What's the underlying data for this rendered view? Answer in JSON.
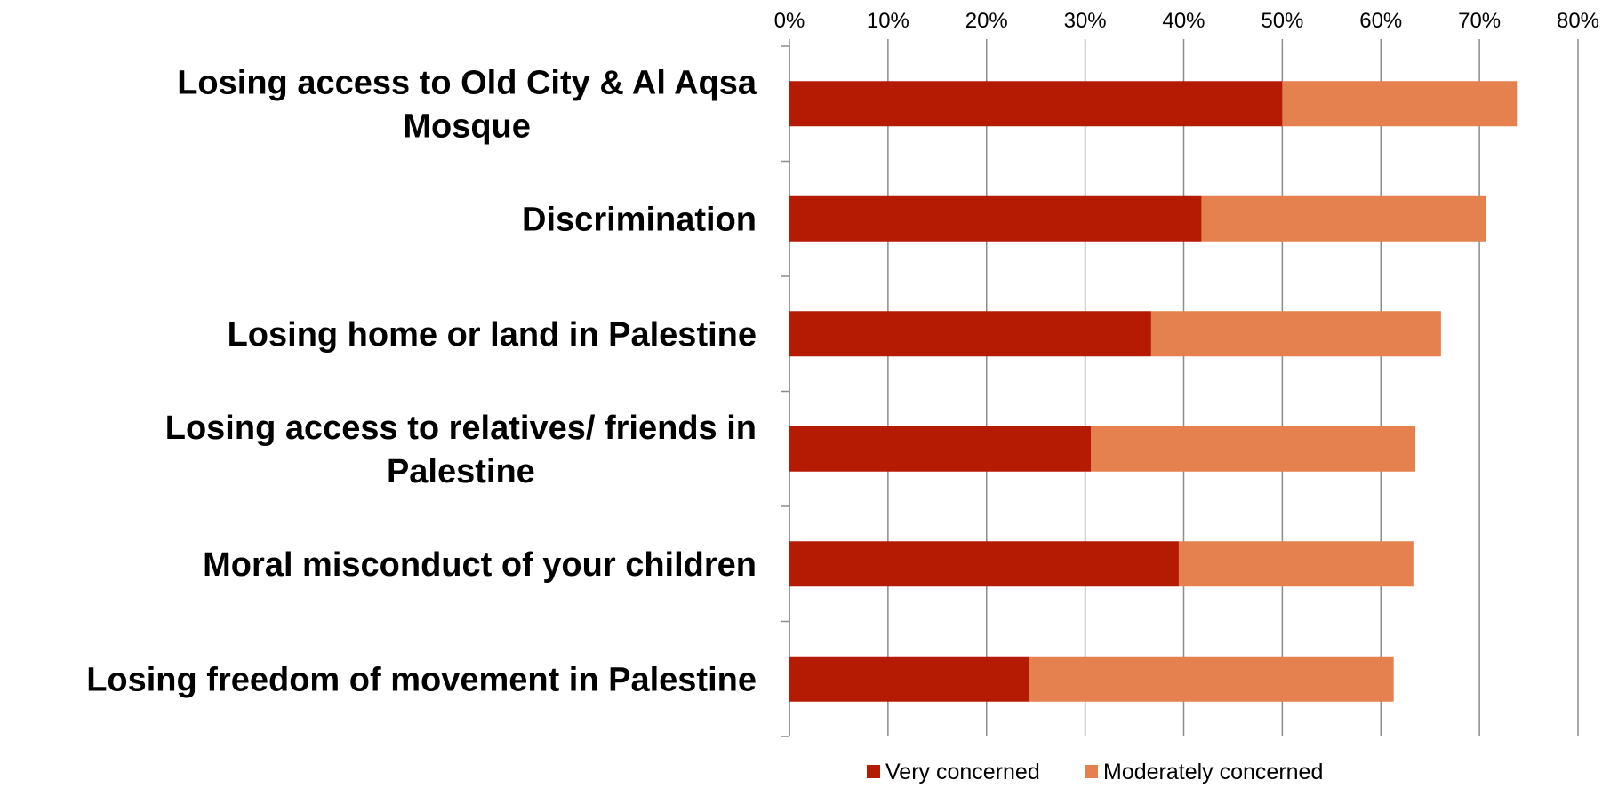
{
  "chart_data": {
    "type": "bar",
    "orientation": "horizontal",
    "stacked": true,
    "categories": [
      "Losing access to Old City & Al Aqsa Mosque",
      "Discrimination",
      "Losing home or land in Palestine",
      "Losing access to relatives/ friends in Palestine",
      "Moral misconduct of your children",
      "Losing freedom of movement in Palestine"
    ],
    "category_lines": [
      [
        "Losing access to Old City & Al Aqsa",
        "Mosque"
      ],
      [
        "Discrimination"
      ],
      [
        "Losing home or land in Palestine"
      ],
      [
        "Losing access to relatives/ friends in",
        "Palestine"
      ],
      [
        "Moral misconduct of your children"
      ],
      [
        "Losing freedom of movement in Palestine"
      ]
    ],
    "series": [
      {
        "name": "Very concerned",
        "color": "#B51A03",
        "values": [
          50,
          41.8,
          36.7,
          30.6,
          39.5,
          24.3
        ]
      },
      {
        "name": "Moderately concerned",
        "color": "#E5804F",
        "values": [
          23.8,
          28.9,
          29.4,
          32.9,
          23.8,
          37
        ]
      }
    ],
    "xlim": [
      0,
      80
    ],
    "x_ticks": [
      0,
      10,
      20,
      30,
      40,
      50,
      60,
      70,
      80
    ],
    "x_tick_labels": [
      "0%",
      "10%",
      "20%",
      "30%",
      "40%",
      "50%",
      "60%",
      "70%",
      "80%"
    ],
    "x_axis_position": "top",
    "grid": true,
    "grid_color": "#8c8c8c",
    "legend_position": "bottom",
    "title": "",
    "xlabel": "",
    "ylabel": ""
  }
}
